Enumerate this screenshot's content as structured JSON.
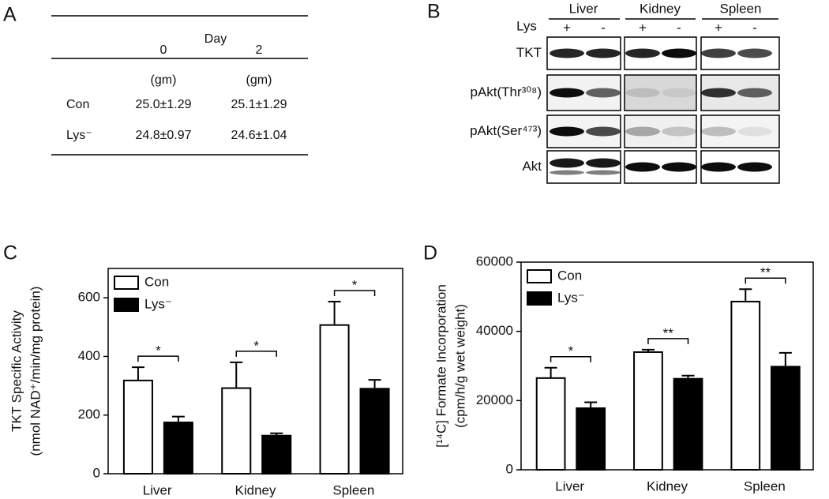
{
  "panel_labels": [
    "A",
    "B",
    "C",
    "D"
  ],
  "table": {
    "header": "Day",
    "columns": [
      "0",
      "2"
    ],
    "units": [
      "(gm)",
      "(gm)"
    ],
    "rows": [
      [
        "Con",
        "25.0±1.29",
        "25.1±1.29"
      ],
      [
        "Lys⁻",
        "24.8±0.97",
        "24.6±1.04"
      ]
    ]
  },
  "blot": {
    "tissues": [
      "Liver",
      "Kidney",
      "Spleen"
    ],
    "treatment": "Lys",
    "lanes": [
      "+",
      "-",
      "+",
      "-",
      "+",
      "-"
    ],
    "rows": [
      "TKT",
      "pAkt(Thr³⁰⁸)",
      "pAkt(Ser⁴⁷³)",
      "Akt"
    ]
  },
  "chart_data": [
    {
      "type": "bar",
      "y_label": [
        "TKT Specific Activity",
        "(nmol NAD⁺/min/mg protein)"
      ],
      "categories": [
        "Liver",
        "Kidney",
        "Spleen"
      ],
      "series": [
        {
          "name": "Con",
          "color": "#ffffff",
          "values": [
            318,
            292,
            507
          ],
          "errors": [
            45,
            88,
            80
          ]
        },
        {
          "name": "Lys⁻",
          "color": "#000000",
          "values": [
            175,
            130,
            290
          ],
          "errors": [
            20,
            8,
            30
          ]
        }
      ],
      "significance": [
        "*",
        "*",
        "*"
      ],
      "ylim": [
        0,
        700
      ],
      "yticks": [
        0,
        200,
        400,
        600
      ],
      "legend": "upper left"
    },
    {
      "type": "bar",
      "y_label": [
        "[¹⁴C] Formate Incorporation",
        "(cpm/h/g wet weight)"
      ],
      "categories": [
        "Liver",
        "Kidney",
        "Spleen"
      ],
      "series": [
        {
          "name": "Con",
          "color": "#ffffff",
          "values": [
            26500,
            34000,
            48600
          ],
          "errors": [
            3000,
            700,
            3600
          ]
        },
        {
          "name": "Lys⁻",
          "color": "#000000",
          "values": [
            17800,
            26300,
            29800
          ],
          "errors": [
            1700,
            900,
            4000
          ]
        }
      ],
      "significance": [
        "*",
        "**",
        "**"
      ],
      "ylim": [
        0,
        60000
      ],
      "yticks": [
        0,
        20000,
        40000,
        60000
      ],
      "legend": "upper left"
    }
  ]
}
